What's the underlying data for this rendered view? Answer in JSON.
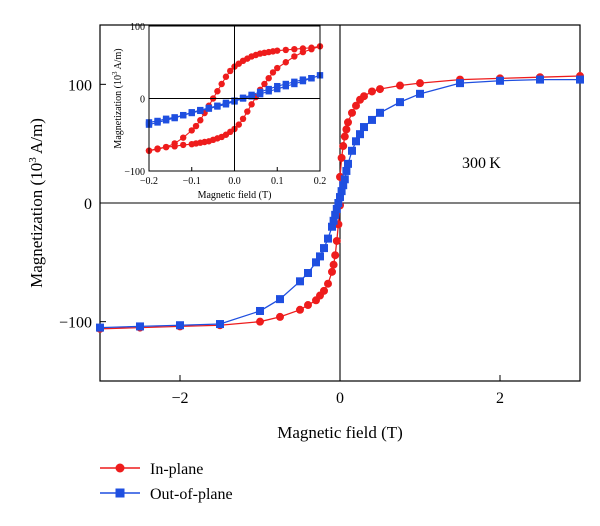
{
  "chart_data": [
    {
      "type": "line",
      "xlabel": "Magnetic field (T)",
      "ylabel_parts": [
        "Magnetization (10",
        "3",
        " A/m)"
      ],
      "xlim": [
        -3,
        3
      ],
      "ylim": [
        -150,
        150
      ],
      "xticks": [
        -2,
        0,
        2
      ],
      "yticks": [
        -100,
        0,
        100
      ],
      "xtick_labels": [
        "−2",
        "0",
        "2"
      ],
      "ytick_labels": [
        "−100",
        "0",
        "100"
      ],
      "annotation": "300 K",
      "legend": {
        "placement": "bottom-left"
      },
      "series": [
        {
          "name": "In-plane",
          "color": "#ee1c1c",
          "marker": "circle",
          "x": [
            -3.0,
            -2.5,
            -2.0,
            -1.5,
            -1.0,
            -0.75,
            -0.5,
            -0.4,
            -0.3,
            -0.25,
            -0.2,
            -0.15,
            -0.1,
            -0.08,
            -0.06,
            -0.04,
            -0.02,
            0.0,
            0.0,
            0.02,
            0.04,
            0.06,
            0.08,
            0.1,
            0.15,
            0.2,
            0.25,
            0.3,
            0.4,
            0.5,
            0.75,
            1.0,
            1.5,
            2.0,
            2.5,
            3.0
          ],
          "y": [
            -106,
            -105,
            -104,
            -103,
            -100,
            -96,
            -90,
            -86,
            -82,
            -78,
            -74,
            -68,
            -58,
            -52,
            -44,
            -32,
            -18,
            -2,
            22,
            38,
            48,
            56,
            62,
            68,
            76,
            82,
            87,
            90,
            94,
            96,
            99,
            101,
            104,
            105,
            106,
            107
          ]
        },
        {
          "name": "Out-of-plane",
          "color": "#1f4fe0",
          "marker": "square",
          "x": [
            -3.0,
            -2.5,
            -2.0,
            -1.5,
            -1.0,
            -0.75,
            -0.5,
            -0.4,
            -0.3,
            -0.25,
            -0.2,
            -0.15,
            -0.1,
            -0.08,
            -0.06,
            -0.04,
            -0.02,
            0.0,
            0.02,
            0.04,
            0.06,
            0.08,
            0.1,
            0.15,
            0.2,
            0.25,
            0.3,
            0.4,
            0.5,
            0.75,
            1.0,
            1.5,
            2.0,
            2.5,
            3.0
          ],
          "y": [
            -105,
            -104,
            -103,
            -102,
            -91,
            -81,
            -66,
            -59,
            -50,
            -45,
            -38,
            -30,
            -20,
            -15,
            -10,
            -5,
            0,
            5,
            10,
            15,
            20,
            27,
            33,
            44,
            52,
            58,
            64,
            70,
            76,
            85,
            92,
            101,
            103,
            104,
            104
          ]
        }
      ]
    },
    {
      "type": "line",
      "role": "inset",
      "xlabel": "Magnetic field (T)",
      "ylabel_parts": [
        "Magnetization (10",
        "3",
        " A/m)"
      ],
      "xlim": [
        -0.2,
        0.2
      ],
      "ylim": [
        -100,
        100
      ],
      "xticks": [
        -0.2,
        -0.1,
        0.0,
        0.1,
        0.2
      ],
      "yticks": [
        -100,
        0,
        100
      ],
      "xtick_labels": [
        "−0.2",
        "−0.1",
        "0.0",
        "0.1",
        "0.2"
      ],
      "ytick_labels": [
        "−100",
        "0",
        "100"
      ],
      "series": [
        {
          "name": "In-plane",
          "color": "#ee1c1c",
          "marker": "circle",
          "x": [
            -0.2,
            -0.18,
            -0.16,
            -0.14,
            -0.12,
            -0.1,
            -0.09,
            -0.08,
            -0.07,
            -0.06,
            -0.05,
            -0.04,
            -0.03,
            -0.02,
            -0.01,
            0.0,
            0.01,
            0.02,
            0.03,
            0.04,
            0.05,
            0.06,
            0.07,
            0.08,
            0.09,
            0.1,
            0.12,
            0.14,
            0.16,
            0.18,
            0.2,
            0.18,
            0.16,
            0.14,
            0.12,
            0.1,
            0.09,
            0.08,
            0.07,
            0.06,
            0.05,
            0.04,
            0.03,
            0.02,
            0.01,
            0.0,
            -0.01,
            -0.02,
            -0.03,
            -0.04,
            -0.05,
            -0.06,
            -0.07,
            -0.08,
            -0.09,
            -0.1,
            -0.12,
            -0.14,
            -0.16,
            -0.18,
            -0.2
          ],
          "y": [
            -72,
            -70,
            -67,
            -62,
            -54,
            -44,
            -38,
            -30,
            -20,
            -10,
            0,
            10,
            20,
            30,
            38,
            44,
            48,
            52,
            55,
            58,
            60,
            62,
            63,
            64,
            65,
            66,
            67,
            68,
            69,
            70,
            72,
            68,
            64,
            58,
            50,
            42,
            36,
            28,
            20,
            12,
            2,
            -8,
            -18,
            -28,
            -36,
            -42,
            -46,
            -50,
            -53,
            -55,
            -57,
            -59,
            -60,
            -61,
            -62,
            -63,
            -64,
            -66,
            -67,
            -69,
            -72
          ]
        },
        {
          "name": "Out-of-plane",
          "color": "#1f4fe0",
          "marker": "square",
          "x": [
            -0.2,
            -0.18,
            -0.16,
            -0.14,
            -0.12,
            -0.1,
            -0.08,
            -0.06,
            -0.04,
            -0.02,
            0.0,
            0.02,
            0.04,
            0.06,
            0.08,
            0.1,
            0.12,
            0.14,
            0.16,
            0.18,
            0.2,
            0.18,
            0.16,
            0.14,
            0.12,
            0.1,
            0.08,
            0.06,
            0.04,
            0.02,
            0.0,
            -0.02,
            -0.04,
            -0.06,
            -0.08,
            -0.1,
            -0.12,
            -0.14,
            -0.16,
            -0.18,
            -0.2
          ],
          "y": [
            -36,
            -33,
            -30,
            -27,
            -23,
            -19,
            -16,
            -13,
            -10,
            -6,
            -3,
            1,
            5,
            9,
            13,
            17,
            20,
            23,
            26,
            28,
            32,
            28,
            24,
            20,
            17,
            13,
            10,
            6,
            3,
            0,
            -4,
            -8,
            -11,
            -14,
            -17,
            -20,
            -23,
            -26,
            -28,
            -31,
            -33
          ]
        }
      ]
    }
  ]
}
